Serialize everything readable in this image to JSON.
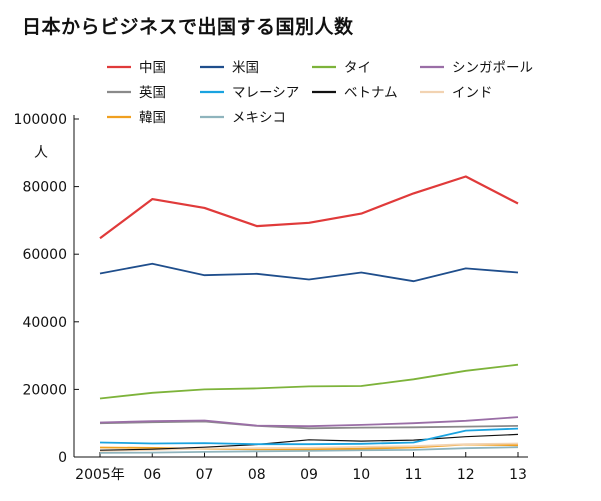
{
  "chart_data": {
    "type": "line",
    "title": "日本からビジネスで出国する国別人数",
    "ylabel": "人",
    "ylim": [
      0,
      100000
    ],
    "yticks": [
      0,
      20000,
      40000,
      60000,
      80000,
      100000
    ],
    "categories": [
      "2005年",
      "06",
      "07",
      "08",
      "09",
      "10",
      "11",
      "12",
      "13"
    ],
    "legend_placement": "top",
    "series": [
      {
        "name": "中国",
        "color": "#e03a3a",
        "width": 2.2,
        "values": [
          64700,
          76300,
          73700,
          68300,
          69300,
          72000,
          78000,
          83000,
          75000
        ]
      },
      {
        "name": "米国",
        "color": "#1f4e8c",
        "width": 1.8,
        "values": [
          54300,
          57200,
          53800,
          54200,
          52500,
          54600,
          52000,
          55800,
          54600
        ]
      },
      {
        "name": "タイ",
        "color": "#7db33a",
        "width": 1.8,
        "values": [
          17300,
          19000,
          20000,
          20300,
          20900,
          21000,
          23000,
          25500,
          27300
        ]
      },
      {
        "name": "シンガポール",
        "color": "#9a6ea6",
        "width": 1.8,
        "values": [
          10200,
          10600,
          10800,
          9300,
          9100,
          9500,
          10000,
          10700,
          11800
        ]
      },
      {
        "name": "英国",
        "color": "#8a8a8a",
        "width": 1.8,
        "values": [
          10000,
          10300,
          10500,
          9200,
          8500,
          8700,
          8800,
          9000,
          9200
        ]
      },
      {
        "name": "マレーシア",
        "color": "#1aa3e0",
        "width": 1.8,
        "values": [
          4300,
          4000,
          4100,
          3800,
          3800,
          3900,
          4300,
          7800,
          8400
        ]
      },
      {
        "name": "ベトナム",
        "color": "#111111",
        "width": 1.2,
        "values": [
          2000,
          2300,
          2900,
          3700,
          5100,
          4700,
          5000,
          6000,
          6700
        ]
      },
      {
        "name": "インド",
        "color": "#f2d3b2",
        "width": 1.8,
        "values": [
          1800,
          2100,
          2500,
          2600,
          2700,
          3000,
          3200,
          3800,
          4000
        ]
      },
      {
        "name": "韓国",
        "color": "#f0a020",
        "width": 1.8,
        "values": [
          2800,
          2700,
          2400,
          2300,
          2300,
          2500,
          2800,
          3700,
          3500
        ]
      },
      {
        "name": "メキシコ",
        "color": "#8fb4bd",
        "width": 1.8,
        "values": [
          1200,
          1300,
          1500,
          1700,
          1800,
          2000,
          2100,
          2600,
          2900
        ]
      }
    ]
  }
}
